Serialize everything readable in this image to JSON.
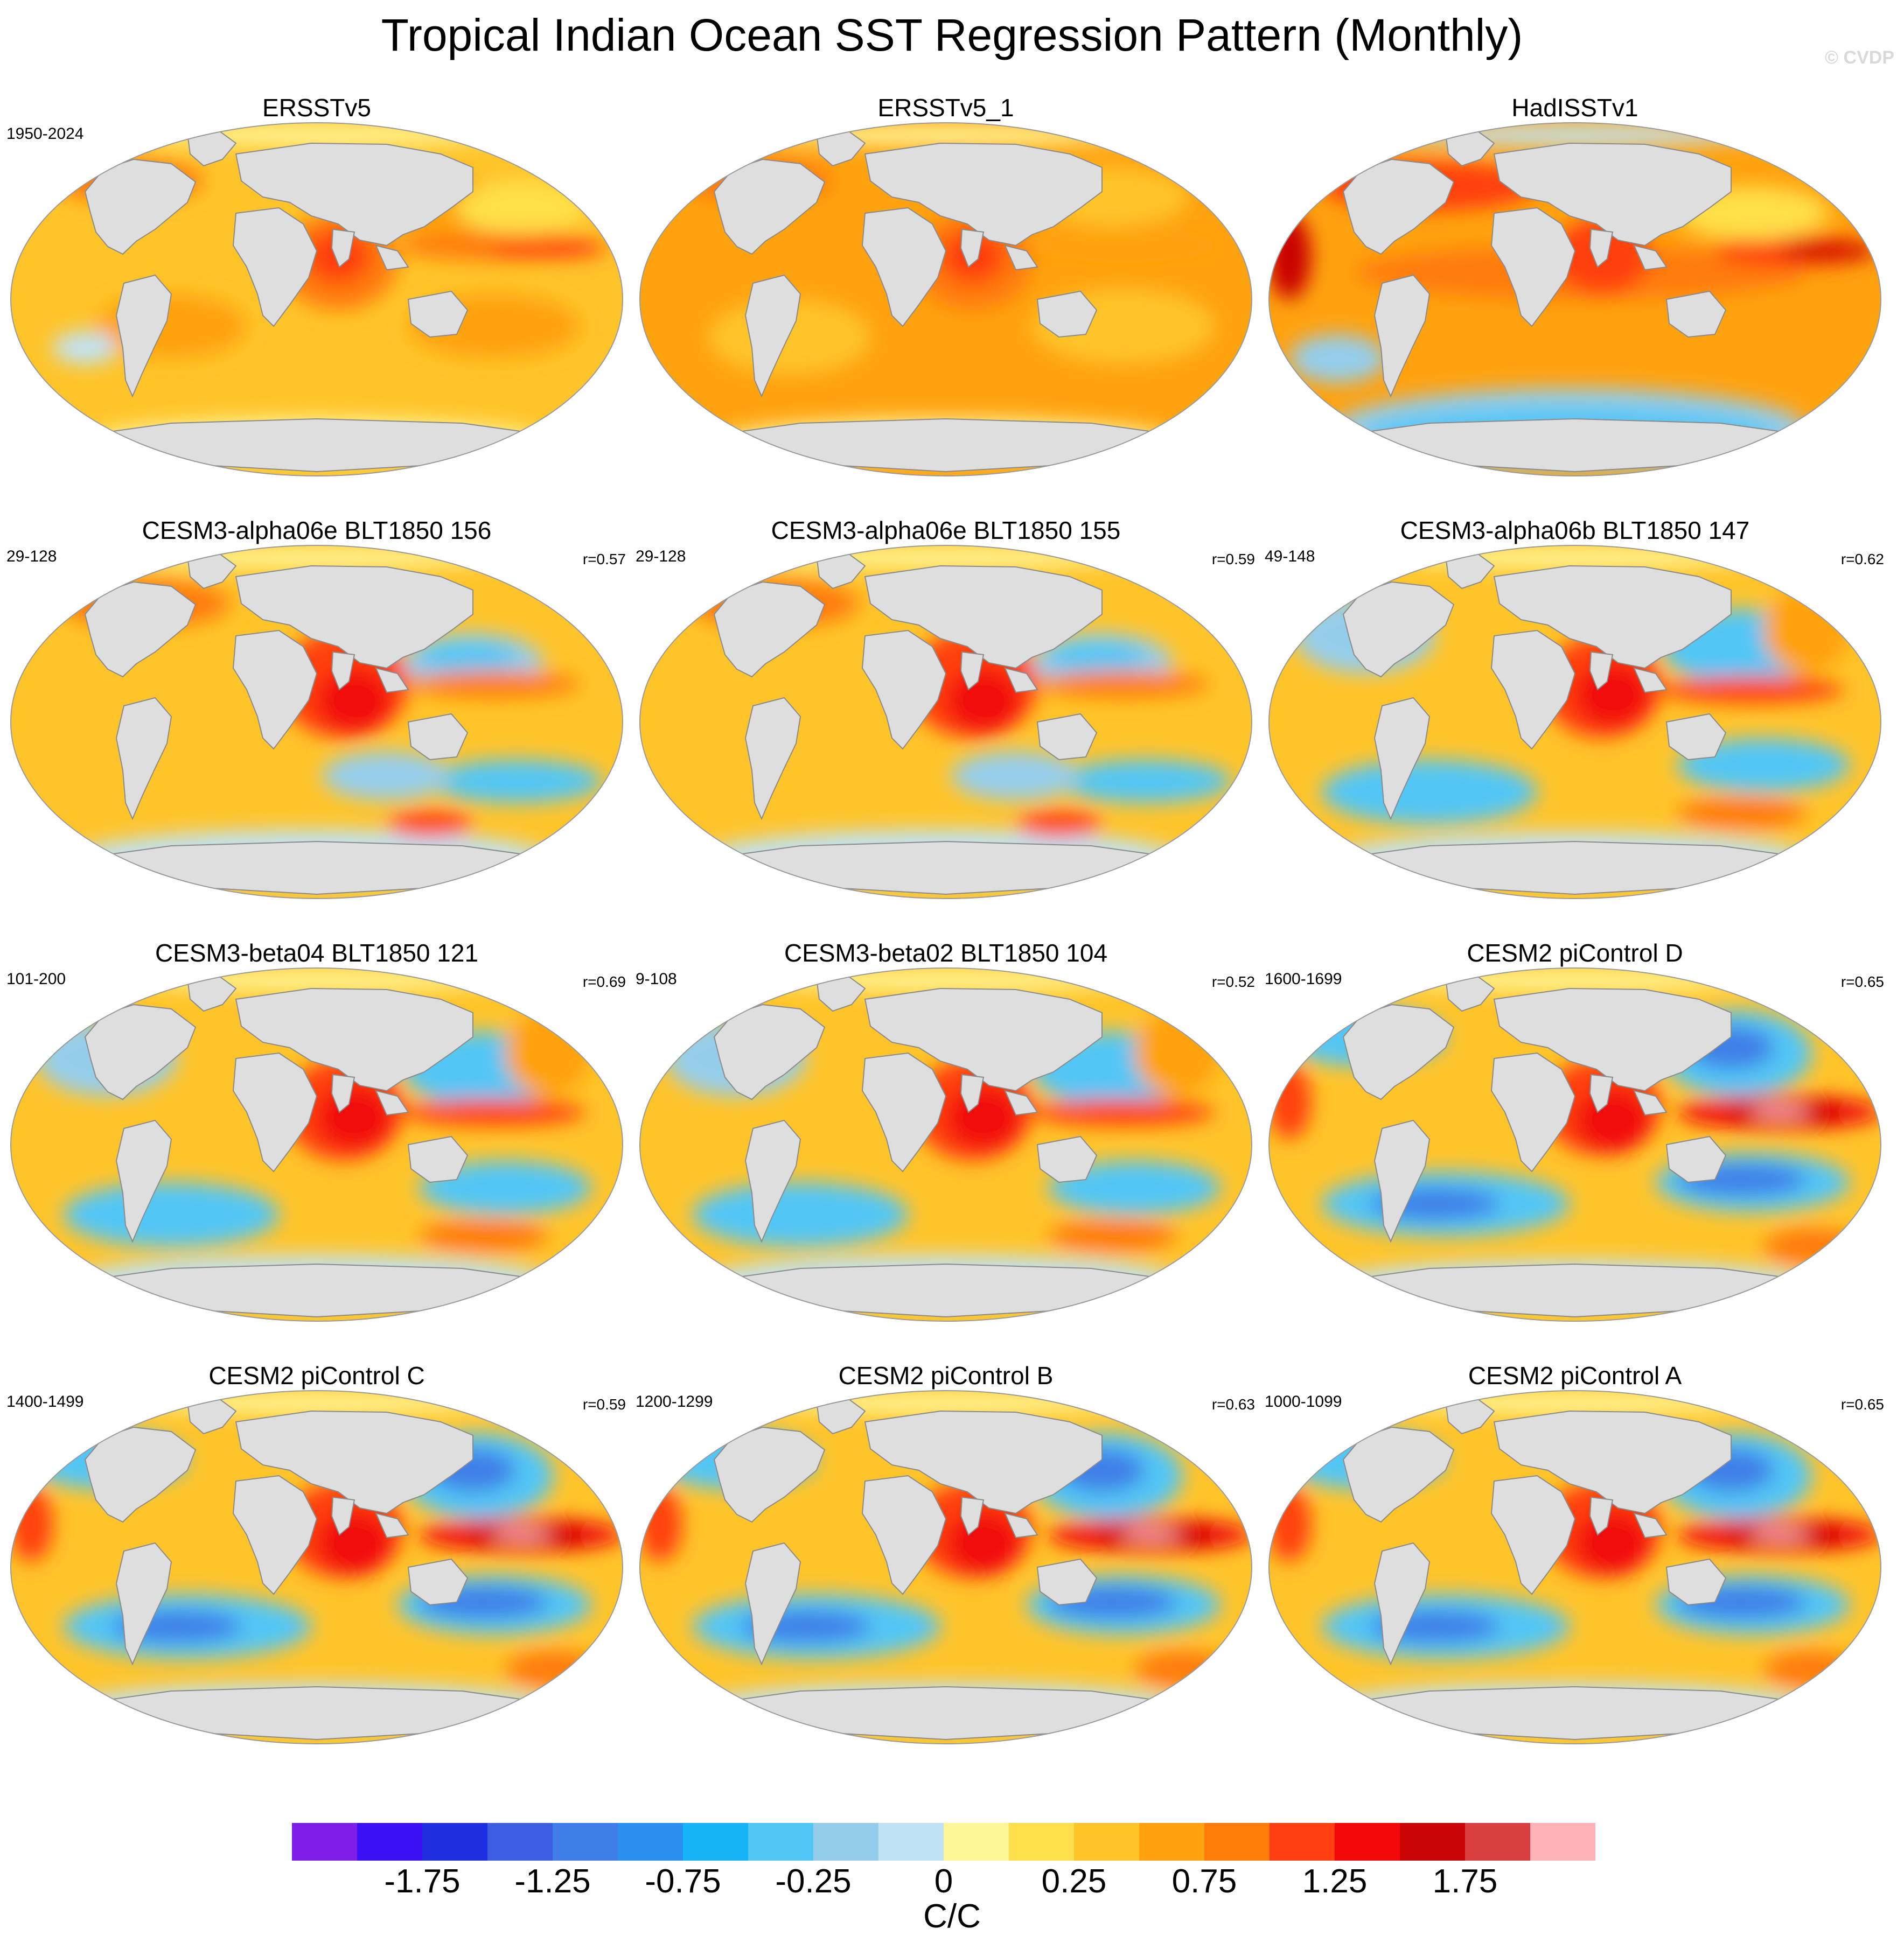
{
  "title": "Tropical Indian Ocean SST Regression Pattern (Monthly)",
  "watermark": "© CVDP",
  "panels": [
    {
      "title": "ERSSTv5",
      "years": "1950-2024",
      "r": "",
      "scheme": "obs1"
    },
    {
      "title": "ERSSTv5_1",
      "years": "",
      "r": "",
      "scheme": "obs2"
    },
    {
      "title": "HadISSTv1",
      "years": "",
      "r": "",
      "scheme": "obs3"
    },
    {
      "title": "CESM3-alpha06e BLT1850 156",
      "years": "29-128",
      "r": "r=0.57",
      "scheme": "model_mixed"
    },
    {
      "title": "CESM3-alpha06e BLT1850 155",
      "years": "29-128",
      "r": "r=0.59",
      "scheme": "model_mixed"
    },
    {
      "title": "CESM3-alpha06b BLT1850 147",
      "years": "49-148",
      "r": "r=0.62",
      "scheme": "model_cool"
    },
    {
      "title": "CESM3-beta04 BLT1850 121",
      "years": "101-200",
      "r": "r=0.69",
      "scheme": "model_cool"
    },
    {
      "title": "CESM3-beta02 BLT1850 104",
      "years": "9-108",
      "r": "r=0.52",
      "scheme": "model_cool"
    },
    {
      "title": "CESM2 piControl D",
      "years": "1600-1699",
      "r": "r=0.65",
      "scheme": "model_strong"
    },
    {
      "title": "CESM2 piControl C",
      "years": "1400-1499",
      "r": "r=0.59",
      "scheme": "model_strong"
    },
    {
      "title": "CESM2 piControl B",
      "years": "1200-1299",
      "r": "r=0.63",
      "scheme": "model_strong"
    },
    {
      "title": "CESM2 piControl A",
      "years": "1000-1099",
      "r": "r=0.65",
      "scheme": "model_strong"
    }
  ],
  "colorbar": {
    "colors": [
      "#7e1fe8",
      "#3b10f5",
      "#1e2fe0",
      "#3b5fe0",
      "#3f7ee8",
      "#2a90f0",
      "#16b4f5",
      "#52c6f5",
      "#94cdec",
      "#bfe3f5",
      "#fff69a",
      "#ffe04a",
      "#ffc42a",
      "#ffa20f",
      "#ff7b0a",
      "#ff3f10",
      "#f20808",
      "#c90505",
      "#d84040",
      "#ffb3b8"
    ],
    "tick_labels": [
      "-1.75",
      "-1.25",
      "-0.75",
      "-0.25",
      "0",
      "0.25",
      "0.75",
      "1.25",
      "1.75"
    ],
    "units": "C/C"
  }
}
